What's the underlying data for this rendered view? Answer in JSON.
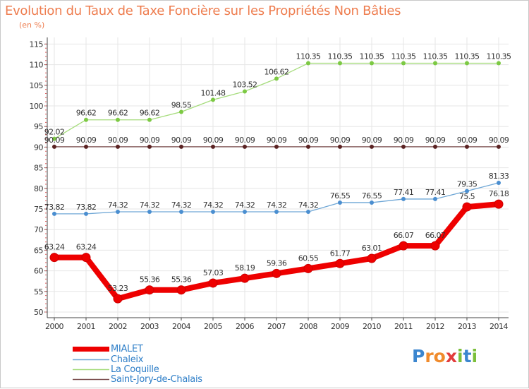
{
  "title": "Evolution du Taux de Taxe Foncière sur les Propriétés Non Bâties",
  "unit": "(en %)",
  "colors": {
    "title": "#ee7d4f",
    "axis": "#444444",
    "grid": "#e6e6e6",
    "minor_tick": "#e06060",
    "legend_text": "#2f7fc8"
  },
  "chart_data": {
    "type": "line",
    "title": "Evolution du Taux de Taxe Foncière sur les Propriétés Non Bâties",
    "ylabel": "(en %)",
    "xlabel": "",
    "categories": [
      "2000",
      "2001",
      "2002",
      "2003",
      "2004",
      "2005",
      "2006",
      "2007",
      "2008",
      "2009",
      "2010",
      "2011",
      "2012",
      "2013",
      "2014"
    ],
    "ylim": [
      50,
      115
    ],
    "yticks": [
      "115",
      "110",
      "105",
      "100",
      "95",
      "90",
      "85",
      "80",
      "75",
      "70",
      "65",
      "60",
      "55",
      "50"
    ],
    "grid": true,
    "legend_position": "bottom-left",
    "series": [
      {
        "name": "MIALET",
        "color": "#ee0000",
        "marker_color": "#ee0000",
        "width": "thick",
        "values": [
          63.24,
          63.24,
          53.23,
          55.36,
          55.36,
          57.03,
          58.19,
          59.36,
          60.55,
          61.77,
          63.01,
          66.07,
          66.07,
          75.5,
          76.18
        ],
        "labels": [
          "63.24",
          "63.24",
          "53.23",
          "55.36",
          "55.36",
          "57.03",
          "58.19",
          "59.36",
          "60.55",
          "61.77",
          "63.01",
          "66.07",
          "66.07",
          "75.5",
          "76.18"
        ]
      },
      {
        "name": "Chaleix",
        "color": "#6fa7d6",
        "marker_color": "#4a8ed0",
        "width": "thin",
        "values": [
          73.82,
          73.82,
          74.32,
          74.32,
          74.32,
          74.32,
          74.32,
          74.32,
          74.32,
          76.55,
          76.55,
          77.41,
          77.41,
          79.35,
          81.33
        ],
        "labels": [
          "73.82",
          "73.82",
          "74.32",
          "74.32",
          "74.32",
          "74.32",
          "74.32",
          "74.32",
          "74.32",
          "76.55",
          "76.55",
          "77.41",
          "77.41",
          "79.35",
          "81.33"
        ]
      },
      {
        "name": "La Coquille",
        "color": "#a6dc7c",
        "marker_color": "#7cc943",
        "width": "thin",
        "values": [
          92.02,
          96.62,
          96.62,
          96.62,
          98.55,
          101.48,
          103.52,
          106.62,
          110.35,
          110.35,
          110.35,
          110.35,
          110.35,
          110.35,
          110.35
        ],
        "labels": [
          "92.02",
          "96.62",
          "96.62",
          "96.62",
          "98.55",
          "101.48",
          "103.52",
          "106.62",
          "110.35",
          "110.35",
          "110.35",
          "110.35",
          "110.35",
          "110.35",
          "110.35"
        ]
      },
      {
        "name": "Saint-Jory-de-Chalais",
        "color": "#7a4c4c",
        "marker_color": "#5b2323",
        "width": "thin",
        "values": [
          90.09,
          90.09,
          90.09,
          90.09,
          90.09,
          90.09,
          90.09,
          90.09,
          90.09,
          90.09,
          90.09,
          90.09,
          90.09,
          90.09,
          90.09
        ],
        "labels": [
          "90.09",
          "90.09",
          "90.09",
          "90.09",
          "90.09",
          "90.09",
          "90.09",
          "90.09",
          "90.09",
          "90.09",
          "90.09",
          "90.09",
          "90.09",
          "90.09",
          "90.09"
        ]
      }
    ]
  },
  "legend": {
    "items": [
      {
        "label": "MIALET",
        "color": "#ee0000",
        "thick": true
      },
      {
        "label": "Chaleix",
        "color": "#6fa7d6",
        "thick": false
      },
      {
        "label": "La Coquille",
        "color": "#a6dc7c",
        "thick": false
      },
      {
        "label": "Saint-Jory-de-Chalais",
        "color": "#7a4c4c",
        "thick": false
      }
    ]
  },
  "brand": {
    "letters": [
      "P",
      "r",
      "o",
      "x",
      "i",
      "t",
      "i"
    ],
    "colors": [
      "#3b86cf",
      "#f08b2c",
      "#f08b2c",
      "#e23c3c",
      "#7bbf3a",
      "#3b86cf",
      "#7bbf3a"
    ]
  }
}
